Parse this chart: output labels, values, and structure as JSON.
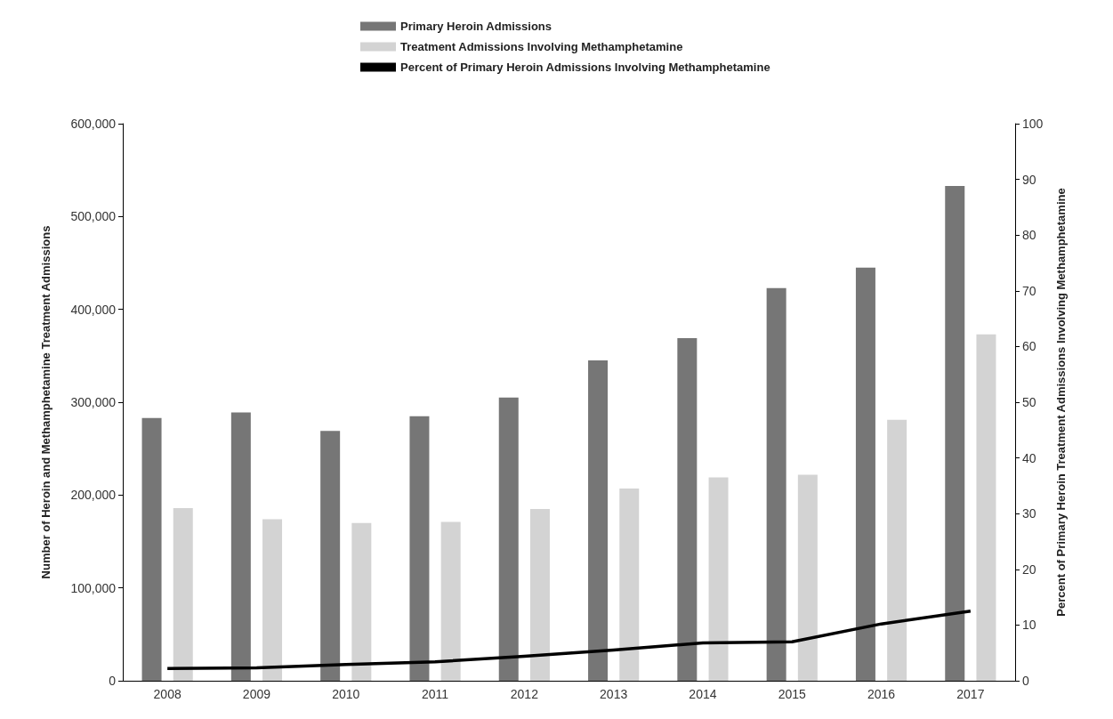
{
  "chart_data": {
    "type": "bar",
    "categories": [
      "2008",
      "2009",
      "2010",
      "2011",
      "2012",
      "2013",
      "2014",
      "2015",
      "2016",
      "2017"
    ],
    "series": [
      {
        "name": "Primary Heroin Admissions",
        "color": "#767676",
        "values": [
          283000,
          289000,
          269000,
          285000,
          305000,
          345000,
          369000,
          423000,
          445000,
          533000
        ]
      },
      {
        "name": "Treatment Admissions Involving Methamphetamine",
        "color": "#d3d3d3",
        "values": [
          186000,
          174000,
          170000,
          171000,
          185000,
          207000,
          219000,
          222000,
          281000,
          373000
        ]
      },
      {
        "name": "Percent of Primary Heroin Admissions Involving Methamphetamine",
        "type": "line",
        "axis": "y2",
        "color": "#000000",
        "values": [
          2.2,
          2.3,
          2.9,
          3.4,
          4.4,
          5.5,
          6.8,
          7.0,
          10.2,
          12.5
        ]
      }
    ],
    "ylabel": "Number of Heroin and Methamphetamine Treatment Admissions",
    "y2label": "Percent of Primary Heroin Treatment Admissions Involving Methamphetamine",
    "ylim": [
      0,
      600000
    ],
    "yticks": [
      0,
      {
        "value": 100000,
        "label": "100,000"
      },
      {
        "value": 200000,
        "label": "200,000"
      },
      {
        "value": 300000,
        "label": "300,000"
      },
      {
        "value": 400000,
        "label": "400,000"
      },
      {
        "value": 500000,
        "label": "500,000"
      },
      {
        "value": 600000,
        "label": "600,000"
      }
    ],
    "y2lim": [
      0,
      100
    ],
    "y2ticks": [
      0,
      10,
      20,
      30,
      40,
      50,
      60,
      70,
      80,
      90,
      100
    ],
    "grid": false,
    "legend": "top",
    "marker": "none",
    "line_style": "solid"
  }
}
